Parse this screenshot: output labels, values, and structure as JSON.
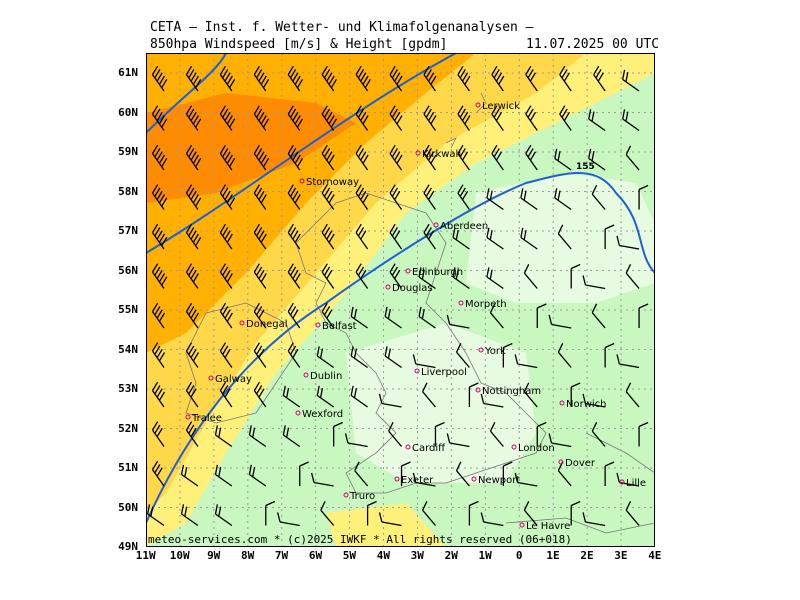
{
  "header": {
    "title": "CETA – Inst. f. Wetter- und Klimafolgenanalysen –",
    "subtitle_left": "850hpa Windspeed [m/s] & Height [gpdm]",
    "subtitle_right": "11.07.2025 00 UTC"
  },
  "map": {
    "lat_labels": [
      "61N",
      "60N",
      "59N",
      "58N",
      "57N",
      "56N",
      "55N",
      "54N",
      "53N",
      "52N",
      "51N",
      "50N",
      "49N"
    ],
    "lon_labels": [
      "11W",
      "10W",
      "9W",
      "8W",
      "7W",
      "6W",
      "5W",
      "4W",
      "3W",
      "2W",
      "1W",
      "0",
      "1E",
      "2E",
      "3E",
      "4E"
    ],
    "contour_label": "155",
    "colors": {
      "windspeed_high": "#ff8c00",
      "windspeed_med": "#ffb000",
      "windspeed_low": "#ffd84a",
      "windspeed_light": "#fff07a",
      "calm_green": "#c8f7c0",
      "calm_light": "#e6fbe0",
      "contour": "#1f5fd6"
    },
    "cities": [
      {
        "name": "Lerwick"
      },
      {
        "name": "Kirkwall"
      },
      {
        "name": "Stornoway"
      },
      {
        "name": "Aberdeen"
      },
      {
        "name": "Edinburgh"
      },
      {
        "name": "Douglas"
      },
      {
        "name": "Morpeth"
      },
      {
        "name": "Donegal"
      },
      {
        "name": "Belfast"
      },
      {
        "name": "York"
      },
      {
        "name": "Dublin"
      },
      {
        "name": "Liverpool"
      },
      {
        "name": "Galway"
      },
      {
        "name": "Nottingham"
      },
      {
        "name": "Norwich"
      },
      {
        "name": "Wexford"
      },
      {
        "name": "Tralee"
      },
      {
        "name": "Cardiff"
      },
      {
        "name": "London"
      },
      {
        "name": "Dover"
      },
      {
        "name": "Exeter"
      },
      {
        "name": "Newport"
      },
      {
        "name": "Lille"
      },
      {
        "name": "Truro"
      },
      {
        "name": "Le Havre"
      }
    ]
  },
  "footer": {
    "copyright": "meteo-services.com * (c)2025 IWKF * All rights reserved (06+018)"
  }
}
